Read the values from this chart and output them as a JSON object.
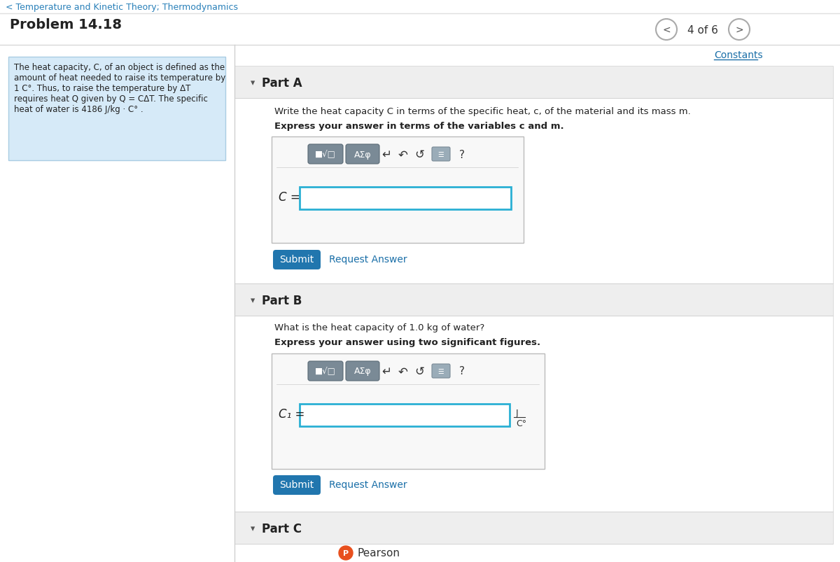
{
  "title": "Problem 14.18",
  "nav_text": "4 of 6",
  "breadcrumb": "< Temperature and Kinetic Theory; Thermodynamics",
  "constants_text": "Constants",
  "context_lines": [
    "The heat capacity, C, of an object is defined as the",
    "amount of heat needed to raise its temperature by",
    "1 C°. Thus, to raise the temperature by ΔT",
    "requires heat Q given by Q = CΔT. The specific",
    "heat of water is 4186 J/kg · C° ."
  ],
  "context_bg": "#d6eaf8",
  "context_border": "#a9cce3",
  "part_a_label": "Part A",
  "part_a_q1": "Write the heat capacity C in terms of the specific heat, c, of the material and its mass m.",
  "part_a_q2": "Express your answer in terms of the variables c and m.",
  "part_a_input": "C =",
  "part_b_label": "Part B",
  "part_b_q1": "What is the heat capacity of 1.0 kg of water?",
  "part_b_q2": "Express your answer using two significant figures.",
  "part_b_input": "C₁ =",
  "part_b_unit_top": "J",
  "part_b_unit_bot": "C°",
  "part_c_label": "Part C",
  "submit_text": "Submit",
  "submit_bg": "#2176ae",
  "request_text": "Request Answer",
  "link_color": "#1a6fa8",
  "bg_white": "#ffffff",
  "bg_light": "#f2f2f2",
  "border_gray": "#d0d0d0",
  "input_border": "#2ab0d4",
  "toolbar_btn1_bg": "#7a8a96",
  "toolbar_btn2_bg": "#7a8a96",
  "nav_circle_bg": "#ffffff",
  "nav_circle_border": "#aaaaaa",
  "header_separator": "#e0e0e0",
  "text_dark": "#222222",
  "text_medium": "#555555",
  "pearson_orange": "#e8501e"
}
